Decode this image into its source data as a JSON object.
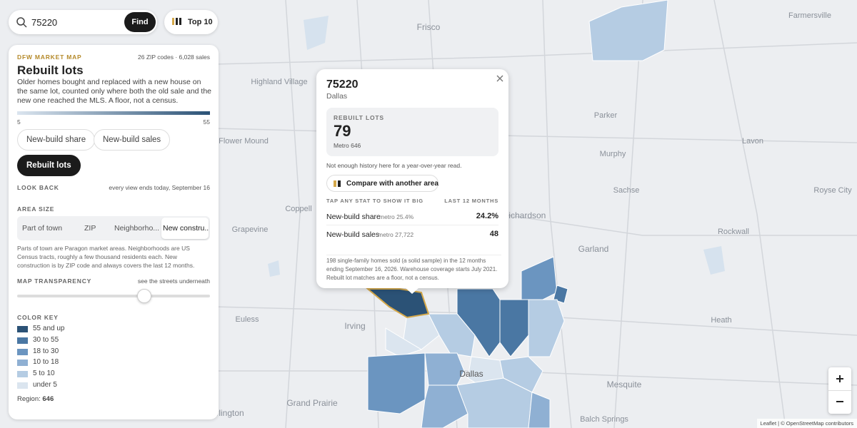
{
  "search": {
    "query": "75220",
    "button": "Find",
    "top10": "Top 10"
  },
  "panel": {
    "eyebrow": "DFW MARKET MAP",
    "summary": "26 ZIP codes · 6,028 sales",
    "title": "Rebuilt lots",
    "description": "Older homes bought and replaced with a new house on the same lot, counted only where both the old sale and the new one reached the MLS. A floor, not a census.",
    "scale": {
      "min": 5,
      "max": 55
    },
    "metrics": [
      "New-build share",
      "New-build sales",
      "Rebuilt lots"
    ],
    "look_back": {
      "label": "LOOK BACK",
      "note": "every view ends today, September 16"
    },
    "area_size": {
      "label": "AREA SIZE",
      "options": [
        "Part of town",
        "ZIP",
        "Neighborho...",
        "New constru..."
      ],
      "note": "Parts of town are Paragon market areas. Neighborhoods are US Census tracts, roughly a few thousand residents each. New construction is by ZIP code and always covers the last 12 months."
    },
    "transparency": {
      "label": "MAP TRANSPARENCY",
      "note": "see the streets underneath"
    },
    "color_key": {
      "label": "COLOR KEY",
      "items": [
        {
          "label": "55 and up",
          "color": "#2b5276"
        },
        {
          "label": "30 to 55",
          "color": "#4a77a3"
        },
        {
          "label": "18 to 30",
          "color": "#6b95c0"
        },
        {
          "label": "10 to 18",
          "color": "#8fb0d3"
        },
        {
          "label": "5 to 10",
          "color": "#b5cce3"
        },
        {
          "label": "under 5",
          "color": "#dbe5ef"
        }
      ]
    },
    "region": {
      "label": "Region:",
      "value": 646
    }
  },
  "popup": {
    "zip": "75220",
    "city": "Dallas",
    "stat": {
      "label": "REBUILT LOTS",
      "value": 79,
      "metro": "Metro 646"
    },
    "history_note": "Not enough history here for a year-over-year read.",
    "compare": "Compare with another area",
    "table_header": {
      "left": "TAP ANY STAT TO SHOW IT BIG",
      "right": "LAST 12 MONTHS"
    },
    "rows": [
      {
        "label": "New-build share",
        "metro": "metro 25.4%",
        "value": "24.2%"
      },
      {
        "label": "New-build sales",
        "metro": "metro 27,722",
        "value": "48"
      }
    ],
    "footnote": "198 single-family homes sold (a solid sample) in the 12 months ending September 16, 2026. Warehouse coverage starts July 2021. Rebuilt lot matches are a floor, not a census."
  },
  "map": {
    "labels": [
      "Frisco",
      "Farmersville",
      "Highland Village",
      "Flower Mound",
      "Parker",
      "Murphy",
      "Lavon",
      "Sachse",
      "Royse City",
      "Coppell",
      "Richardson",
      "Grapevine",
      "Rockwall",
      "Garland",
      "Euless",
      "Irving",
      "Heath",
      "Dallas",
      "Mesquite",
      "Grand Prairie",
      "Arlington",
      "Balch Springs"
    ],
    "attribution": "Leaflet | © OpenStreetMap contributors"
  }
}
